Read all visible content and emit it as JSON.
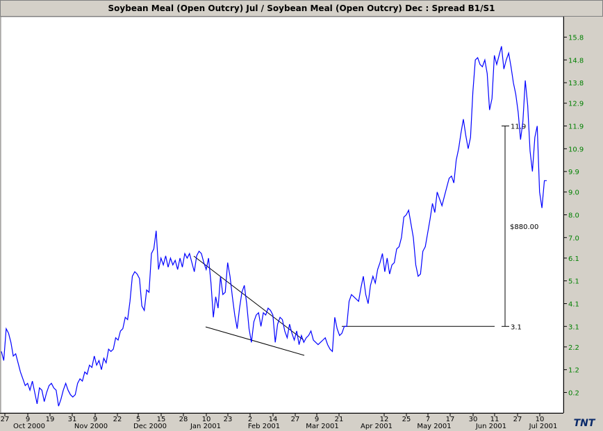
{
  "title": "Soybean Meal (Open Outcry) Jul  / Soybean Meal (Open Outcry) Dec  : Spread B1/S1",
  "logo": "TNT",
  "colors": {
    "background": "#ffffff",
    "frame": "#d4d0c8",
    "series": "#0000ff",
    "annotation": "#000000",
    "ytick": "#008000"
  },
  "chart_data": {
    "type": "line",
    "title": "Soybean Meal (Open Outcry) Jul  / Soybean Meal (Open Outcry) Dec  : Spread B1/S1",
    "ylim": [
      -0.7,
      16.7
    ],
    "y_ticks": [
      "0.2",
      "1.2",
      "2.2",
      "3.1",
      "4.1",
      "5.1",
      "6.1",
      "7.0",
      "8.0",
      "9.0",
      "9.9",
      "10.9",
      "11.9",
      "12.9",
      "13.8",
      "14.8",
      "15.8"
    ],
    "x_day_ticks": [
      "27",
      "9",
      "19",
      "31",
      "9",
      "22",
      "5",
      "15",
      "28",
      "10",
      "23",
      "2",
      "14",
      "27",
      "9",
      "21",
      "12",
      "25",
      "7",
      "17",
      "30",
      "11",
      "27",
      "10"
    ],
    "x_month_labels": [
      "Oct 2000",
      "Nov 2000",
      "Dec 2000",
      "Jan 2001",
      "Feb 2001",
      "Mar 2001",
      "Apr 2001",
      "May 2001",
      "Jun 2001",
      "Jul 2001"
    ],
    "series": [
      {
        "values": [
          2.0,
          1.6,
          3.0,
          2.8,
          2.4,
          1.8,
          1.9,
          1.5,
          1.1,
          0.8,
          0.5,
          0.6,
          0.3,
          0.7,
          0.2,
          -0.3,
          0.4,
          0.3,
          -0.2,
          0.2,
          0.5,
          0.6,
          0.4,
          0.3,
          -0.4,
          -0.1,
          0.3,
          0.6,
          0.3,
          0.1,
          0.0,
          0.1,
          0.6,
          0.8,
          0.7,
          1.1,
          1.0,
          1.4,
          1.3,
          1.8,
          1.4,
          1.6,
          1.2,
          1.7,
          1.5,
          2.1,
          2.0,
          2.1,
          2.6,
          2.5,
          2.9,
          3.0,
          3.5,
          3.4,
          4.2,
          5.3,
          5.5,
          5.4,
          5.2,
          4.0,
          3.8,
          4.7,
          4.6,
          6.3,
          6.5,
          7.3,
          5.6,
          6.1,
          5.8,
          6.2,
          5.7,
          6.1,
          5.8,
          6.0,
          5.6,
          6.1,
          5.7,
          6.3,
          6.1,
          6.3,
          5.9,
          5.5,
          6.2,
          6.4,
          6.3,
          5.9,
          5.6,
          6.1,
          5.0,
          3.5,
          4.4,
          3.9,
          5.3,
          4.5,
          4.6,
          5.9,
          5.3,
          4.4,
          3.6,
          3.0,
          3.9,
          4.6,
          4.9,
          4.1,
          3.0,
          2.4,
          3.3,
          3.6,
          3.7,
          3.1,
          3.7,
          3.6,
          3.9,
          3.8,
          3.6,
          2.4,
          3.2,
          3.5,
          3.4,
          2.9,
          2.6,
          3.2,
          2.8,
          2.5,
          2.9,
          2.3,
          2.7,
          2.4,
          2.6,
          2.7,
          2.9,
          2.5,
          2.4,
          2.3,
          2.4,
          2.5,
          2.6,
          2.3,
          2.1,
          2.0,
          3.5,
          3.0,
          2.7,
          2.8,
          3.1,
          3.1,
          4.2,
          4.5,
          4.4,
          4.3,
          4.2,
          4.8,
          5.3,
          4.5,
          4.1,
          4.9,
          5.3,
          5.0,
          5.6,
          5.9,
          6.3,
          5.5,
          6.1,
          5.4,
          5.8,
          5.9,
          6.5,
          6.6,
          7.0,
          7.9,
          8.0,
          8.2,
          7.6,
          7.0,
          5.8,
          5.3,
          5.4,
          6.4,
          6.6,
          7.2,
          7.8,
          8.5,
          8.1,
          9.0,
          8.7,
          8.4,
          8.8,
          9.2,
          9.6,
          9.7,
          9.4,
          10.4,
          10.9,
          11.6,
          12.2,
          11.5,
          10.9,
          11.4,
          13.4,
          14.8,
          14.9,
          14.6,
          14.5,
          14.8,
          14.2,
          12.6,
          13.1,
          15.0,
          14.6,
          15.0,
          15.4,
          14.4,
          14.8,
          15.1,
          14.5,
          13.8,
          13.3,
          12.5,
          11.3,
          12.1,
          13.9,
          12.8,
          10.8,
          9.9,
          11.4,
          11.9,
          9.0,
          8.3,
          9.5,
          9.5
        ]
      }
    ],
    "annotations": {
      "range_low_label": "3.1",
      "range_high_label": "11.9",
      "range_text": "$880.00",
      "range_low": 3.1,
      "range_high": 11.9
    }
  }
}
